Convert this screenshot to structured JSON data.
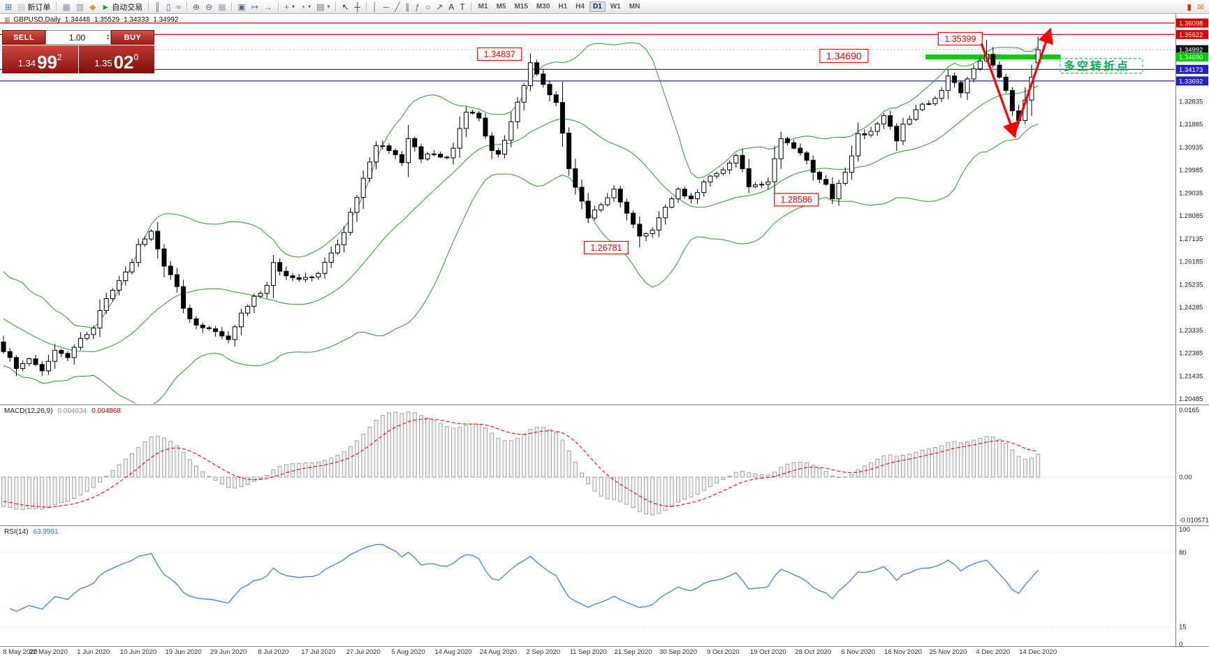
{
  "toolbar": {
    "items": [
      {
        "t": "icon",
        "name": "new-chart-icon",
        "g": "⊞",
        "c": "#3f6fae"
      },
      {
        "t": "btn",
        "name": "new-order-button",
        "g": "▤",
        "c": "#b8bfca",
        "label": "新订单"
      },
      {
        "t": "sep"
      },
      {
        "t": "icon",
        "name": "profiles-icon",
        "g": "▦",
        "c": "#8893a5"
      },
      {
        "t": "icon",
        "name": "market-watch-icon",
        "g": "▥",
        "c": "#8893a5"
      },
      {
        "t": "icon",
        "name": "alerts-icon",
        "g": "◆",
        "c": "#c7a23c"
      },
      {
        "t": "btn",
        "name": "autotrading-button",
        "g": "►",
        "c": "#1fa51f",
        "label": "自动交易"
      },
      {
        "t": "sep"
      },
      {
        "t": "icon",
        "name": "bar-chart-icon",
        "g": "║",
        "c": "#5a6b80"
      },
      {
        "t": "icon",
        "name": "candlestick-chart-icon",
        "g": "▯",
        "c": "#5a6b80"
      },
      {
        "t": "icon",
        "name": "line-chart-icon",
        "g": "≈",
        "c": "#5a6b80"
      },
      {
        "t": "sep"
      },
      {
        "t": "icon",
        "name": "zoom-in-icon",
        "g": "⊕",
        "c": "#5a6b80"
      },
      {
        "t": "icon",
        "name": "zoom-out-icon",
        "g": "⊖",
        "c": "#5a6b80"
      },
      {
        "t": "icon",
        "name": "grid-icon",
        "g": "▦",
        "c": "#9aa4b2"
      },
      {
        "t": "sep"
      },
      {
        "t": "icon",
        "name": "tile-windows-icon",
        "g": "▣",
        "c": "#5a6b80"
      },
      {
        "t": "icon",
        "name": "auto-scroll-icon",
        "g": "↦",
        "c": "#5a6b80"
      },
      {
        "t": "icon",
        "name": "chart-shift-icon",
        "g": "→",
        "c": "#5a6b80"
      },
      {
        "t": "sep"
      },
      {
        "t": "icon",
        "name": "indicators-icon",
        "g": "+",
        "c": "#18a018",
        "caret": true
      },
      {
        "t": "icon",
        "name": "periods-icon",
        "g": "◔",
        "c": "#5a6b80",
        "caret": true
      },
      {
        "t": "icon",
        "name": "templates-icon",
        "g": "▤",
        "c": "#5a6b80",
        "caret": true
      },
      {
        "t": "sep"
      },
      {
        "t": "icon",
        "name": "cursor-icon",
        "g": "↖",
        "c": "#333333"
      },
      {
        "t": "icon",
        "name": "crosshair-icon",
        "g": "┼",
        "c": "#333333"
      },
      {
        "t": "sep"
      },
      {
        "t": "icon",
        "name": "vertical-line-icon",
        "g": "│",
        "c": "#5a6b80"
      },
      {
        "t": "icon",
        "name": "horizontal-line-icon",
        "g": "─",
        "c": "#5a6b80"
      },
      {
        "t": "icon",
        "name": "trendline-icon",
        "g": "╱",
        "c": "#5a6b80"
      },
      {
        "t": "icon",
        "name": "channel-icon",
        "g": "∥",
        "c": "#5a6b80"
      },
      {
        "t": "icon",
        "name": "fibonacci-icon",
        "g": "ƒ",
        "c": "#5a6b80"
      },
      {
        "t": "icon",
        "name": "shapes-icon",
        "g": "○",
        "c": "#5a6b80"
      },
      {
        "t": "icon",
        "name": "arrow-tool-icon",
        "g": "↗",
        "c": "#b03030"
      },
      {
        "t": "icon",
        "name": "text-icon",
        "g": "A",
        "c": "#333333"
      },
      {
        "t": "icon",
        "name": "text-label-icon",
        "g": "T",
        "c": "#333333"
      },
      {
        "t": "sep"
      },
      {
        "t": "tf-group"
      },
      {
        "t": "spacer"
      },
      {
        "t": "icon",
        "name": "price-alert-icon",
        "g": "▮",
        "c": "#cf2b20"
      },
      {
        "t": "icon",
        "name": "news-icon",
        "g": "✉",
        "c": "#b87f2a"
      }
    ],
    "timeframes": [
      "M1",
      "M5",
      "M15",
      "M30",
      "H1",
      "H4",
      "D1",
      "W1",
      "MN"
    ],
    "active_timeframe": "D1"
  },
  "chart": {
    "title": "GBPUSD,Daily",
    "open": "1.34448",
    "high": "1.35529",
    "low": "1.34333",
    "close": "1.34992"
  },
  "trade_panel": {
    "sell_label": "SELL",
    "buy_label": "BUY",
    "volume": "1.00",
    "sell_small": "1.34",
    "sell_big": "99",
    "sell_sup": "2",
    "buy_small": "1.35",
    "buy_big": "02",
    "buy_sup": "0"
  },
  "chart_data": {
    "type": "candlestick",
    "symbol": "GBPUSD",
    "timeframe": "Daily",
    "bars_total": 162,
    "price_range_visible": [
      1.20282,
      1.36417
    ],
    "price_axis_ticks": [
      1.32835,
      1.31885,
      1.30935,
      1.29985,
      1.29035,
      1.28085,
      1.27135,
      1.26185,
      1.25235,
      1.24285,
      1.23335,
      1.22385,
      1.21435,
      1.20485
    ],
    "axis_tags": [
      {
        "text": "1.36098",
        "price": 1.36098,
        "bg": "#dd0000",
        "fg": "#ffffff"
      },
      {
        "text": "1.35622",
        "price": 1.35622,
        "bg": "#dd0000",
        "fg": "#ffffff"
      },
      {
        "text": "1.34992",
        "price": 1.34992,
        "bg": "#111111",
        "fg": "#ffffff"
      },
      {
        "text": "1.34690",
        "price": 1.3469,
        "bg": "#00cc00",
        "fg": "#ffffff"
      },
      {
        "text": "1.34173",
        "price": 1.34173,
        "bg": "#2121cc",
        "fg": "#ffffff"
      },
      {
        "text": "1.33692",
        "price": 1.33692,
        "bg": "#2121cc",
        "fg": "#ffffff"
      }
    ],
    "hlines": [
      {
        "price": 1.36098,
        "color": "#dd0000",
        "width": 1.2
      },
      {
        "price": 1.35622,
        "color": "#dd0000",
        "width": 1.2
      },
      {
        "price": 1.34173,
        "color": "#2121cc",
        "width": 1.2
      },
      {
        "price": 1.33692,
        "color": "#2121cc",
        "width": 1.2
      }
    ],
    "support_zone": {
      "price": 1.3469,
      "from_bar": 143.5,
      "to_bar": 164.5,
      "color": "#00cc00",
      "width": 7
    },
    "bid_price": 1.34992,
    "bollinger": {
      "period": 20,
      "deviation": 2,
      "color": "#2e9b2e"
    },
    "close_anchors": [
      [
        0,
        1.2245
      ],
      [
        2,
        1.2175
      ],
      [
        4,
        1.2215
      ],
      [
        6,
        1.2165
      ],
      [
        8,
        1.225
      ],
      [
        10,
        1.222
      ],
      [
        12,
        1.23
      ],
      [
        14,
        1.2343
      ],
      [
        16,
        1.2465
      ],
      [
        18,
        1.254
      ],
      [
        20,
        1.2615
      ],
      [
        21,
        1.269
      ],
      [
        23,
        1.2745
      ],
      [
        25,
        1.26
      ],
      [
        27,
        1.2515
      ],
      [
        28,
        1.2425
      ],
      [
        30,
        1.2355
      ],
      [
        32,
        1.234
      ],
      [
        34,
        1.231
      ],
      [
        35,
        1.2295
      ],
      [
        37,
        1.2405
      ],
      [
        39,
        1.2475
      ],
      [
        41,
        1.252
      ],
      [
        42,
        1.2615
      ],
      [
        44,
        1.256
      ],
      [
        46,
        1.2545
      ],
      [
        48,
        1.2555
      ],
      [
        49,
        1.257
      ],
      [
        51,
        1.2655
      ],
      [
        53,
        1.274
      ],
      [
        55,
        1.2885
      ],
      [
        56,
        1.2965
      ],
      [
        58,
        1.31
      ],
      [
        60,
        1.308
      ],
      [
        62,
        1.303
      ],
      [
        63,
        1.313
      ],
      [
        65,
        1.3045
      ],
      [
        67,
        1.3065
      ],
      [
        69,
        1.305
      ],
      [
        70,
        1.309
      ],
      [
        72,
        1.324
      ],
      [
        74,
        1.3215
      ],
      [
        76,
        1.308
      ],
      [
        77,
        1.3065
      ],
      [
        79,
        1.32
      ],
      [
        81,
        1.335
      ],
      [
        82,
        1.3445
      ],
      [
        84,
        1.3355
      ],
      [
        86,
        1.328
      ],
      [
        88,
        1.3005
      ],
      [
        90,
        1.287
      ],
      [
        91,
        1.28
      ],
      [
        93,
        1.2855
      ],
      [
        95,
        1.292
      ],
      [
        97,
        1.282
      ],
      [
        99,
        1.2725
      ],
      [
        101,
        1.275
      ],
      [
        103,
        1.2845
      ],
      [
        105,
        1.292
      ],
      [
        107,
        1.288
      ],
      [
        109,
        1.295
      ],
      [
        111,
        1.2985
      ],
      [
        112,
        1.3
      ],
      [
        114,
        1.306
      ],
      [
        116,
        1.293
      ],
      [
        118,
        1.294
      ],
      [
        119,
        1.295
      ],
      [
        121,
        1.313
      ],
      [
        123,
        1.309
      ],
      [
        125,
        1.304
      ],
      [
        126,
        1.299
      ],
      [
        128,
        1.294
      ],
      [
        129,
        1.288
      ],
      [
        131,
        1.299
      ],
      [
        133,
        1.315
      ],
      [
        135,
        1.316
      ],
      [
        137,
        1.3225
      ],
      [
        139,
        1.312
      ],
      [
        140,
        1.319
      ],
      [
        142,
        1.325
      ],
      [
        144,
        1.3275
      ],
      [
        146,
        1.333
      ],
      [
        147,
        1.339
      ],
      [
        149,
        1.332
      ],
      [
        151,
        1.342
      ],
      [
        153,
        1.348
      ],
      [
        154,
        1.3435
      ],
      [
        155,
        1.3385
      ],
      [
        156,
        1.333
      ],
      [
        157,
        1.3245
      ],
      [
        158,
        1.3205
      ],
      [
        159,
        1.329
      ],
      [
        160,
        1.3385
      ],
      [
        161,
        1.34992
      ]
    ],
    "bar_overrides": [
      {
        "bar": 82,
        "h": 1.34837
      },
      {
        "bar": 99,
        "l": 1.26781
      },
      {
        "bar": 129,
        "l": 1.28586
      },
      {
        "bar": 153,
        "h": 1.35399
      },
      {
        "bar": 158,
        "l": 1.3188
      },
      {
        "bar": 161,
        "o": 1.34448,
        "h": 1.35529,
        "l": 1.34333,
        "c": 1.34992
      }
    ],
    "time_labels": [
      {
        "bar": 0,
        "label": "8 May 2020"
      },
      {
        "bar": 7,
        "label": "22 May 2020"
      },
      {
        "bar": 14,
        "label": "1 Jun 2020"
      },
      {
        "bar": 21,
        "label": "10 Jun 2020"
      },
      {
        "bar": 28,
        "label": "19 Jun 2020"
      },
      {
        "bar": 35,
        "label": "29 Jun 2020"
      },
      {
        "bar": 42,
        "label": "8 Jul 2020"
      },
      {
        "bar": 49,
        "label": "17 Jul 2020"
      },
      {
        "bar": 56,
        "label": "27 Jul 2020"
      },
      {
        "bar": 63,
        "label": "5 Aug 2020"
      },
      {
        "bar": 70,
        "label": "14 Aug 2020"
      },
      {
        "bar": 77,
        "label": "24 Aug 2020"
      },
      {
        "bar": 84,
        "label": "2 Sep 2020"
      },
      {
        "bar": 91,
        "label": "11 Sep 2020"
      },
      {
        "bar": 98,
        "label": "21 Sep 2020"
      },
      {
        "bar": 105,
        "label": "30 Sep 2020"
      },
      {
        "bar": 112,
        "label": "9 Oct 2020"
      },
      {
        "bar": 119,
        "label": "19 Oct 2020"
      },
      {
        "bar": 126,
        "label": "28 Oct 2020"
      },
      {
        "bar": 133,
        "label": "6 Nov 2020"
      },
      {
        "bar": 140,
        "label": "16 Nov 2020"
      },
      {
        "bar": 147,
        "label": "25 Nov 2020"
      },
      {
        "bar": 154,
        "label": "4 Dec 2020"
      },
      {
        "bar": 161,
        "label": "14 Dec 2020"
      }
    ],
    "price_labels": [
      {
        "text": "1.34837",
        "bar": 77.2,
        "price": 1.34807,
        "fs": 12.5
      },
      {
        "text": "1.35399",
        "bar": 148.9,
        "price": 1.35445,
        "fs": 12.5
      },
      {
        "text": "1.34690",
        "bar": 130.8,
        "price": 1.34734,
        "fs": 14
      },
      {
        "text": "1.28586",
        "bar": 123.4,
        "price": 1.2876,
        "fs": 12.5
      },
      {
        "text": "1.26781",
        "bar": 93.8,
        "price": 1.26768,
        "fs": 12.5
      }
    ],
    "note": {
      "text": "多空转折点",
      "bar": 165,
      "price": 1.3416,
      "color": "#00b44a"
    },
    "arrows": [
      {
        "name": "down-arrow",
        "from": [
          152.2,
          1.3525
        ],
        "to": [
          157.3,
          1.3146
        ],
        "color": "#ff0000",
        "width": 3.2
      },
      {
        "name": "up-arrow",
        "from": [
          157.3,
          1.3146
        ],
        "to": [
          162.8,
          1.3575
        ],
        "color": "#ff0000",
        "width": 3.2
      }
    ],
    "indicators": {
      "macd": {
        "name": "MACD(12,26,9)",
        "value1": "0.004634",
        "value2": "0.004868",
        "axis": [
          {
            "value": 0.0165,
            "label": "0.0165"
          },
          {
            "value": 0,
            "label": "0.00"
          },
          {
            "value": -0.010571,
            "label": "-0.010571"
          }
        ],
        "hist_color": "#9b9b9b",
        "signal_color": "#ff0000"
      },
      "rsi": {
        "name": "RSI(14)",
        "value": "63.9991",
        "period": 14,
        "axis": [
          {
            "value": 100,
            "label": "100"
          },
          {
            "value": 80,
            "label": "80"
          },
          {
            "value": 15,
            "label": "15"
          },
          {
            "value": 0,
            "label": "0"
          }
        ],
        "levels": [
          80,
          15
        ],
        "color": "#4080ff"
      }
    },
    "colors": {
      "bull": "#ffffff",
      "bear": "#000000",
      "wick": "#000000",
      "label_red": "#ff0000",
      "axis_text": "#222222"
    }
  }
}
